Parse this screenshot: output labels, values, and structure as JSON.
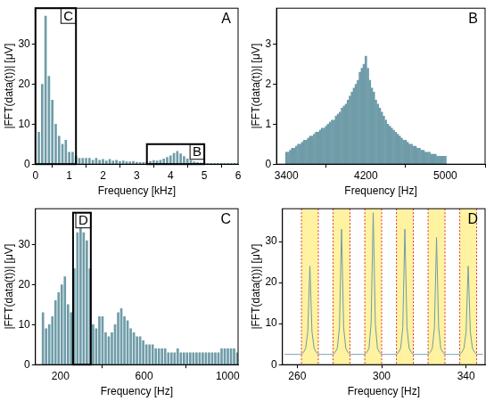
{
  "chart_data": [
    {
      "type": "bar",
      "panel_label": "A",
      "x_label": "Frequency [kHz]",
      "y_label": "|FFT(data(t))| [μV]",
      "color": "#6f9ca8",
      "grid": false,
      "xlim": [
        0,
        6
      ],
      "xticks": [
        0,
        1,
        2,
        3,
        4,
        5,
        6
      ],
      "ylim": [
        0,
        39
      ],
      "yticks": [
        0,
        10,
        20,
        30
      ],
      "x": [
        0,
        0.1,
        0.2,
        0.3,
        0.4,
        0.5,
        0.6,
        0.7,
        0.8,
        0.9,
        1,
        1.1,
        1.2,
        1.3,
        1.4,
        1.5,
        1.6,
        1.7,
        1.8,
        1.9,
        2,
        2.1,
        2.2,
        2.3,
        2.4,
        2.5,
        2.6,
        2.7,
        2.8,
        2.9,
        3,
        3.1,
        3.2,
        3.3,
        3.4,
        3.5,
        3.6,
        3.7,
        3.8,
        3.9,
        4,
        4.1,
        4.2,
        4.3,
        4.4,
        4.5,
        4.6,
        4.7,
        4.8,
        4.9,
        5,
        5.1,
        5.2,
        5.3,
        5.4,
        5.5,
        5.6,
        5.7,
        5.8,
        5.9,
        6
      ],
      "values": [
        0,
        8,
        20,
        37,
        22,
        16,
        10,
        7,
        5,
        6,
        3,
        3,
        2,
        1.5,
        1.5,
        1.5,
        1.5,
        1,
        1.5,
        1,
        1.2,
        0.8,
        1.2,
        0.8,
        1,
        0.7,
        0.8,
        0.6,
        0.6,
        0.7,
        0.5,
        0.4,
        0.4,
        0.5,
        0.7,
        0.9,
        0.8,
        1,
        1.3,
        1.7,
        2.1,
        2.7,
        3.2,
        2.6,
        1.9,
        1.3,
        0.9,
        0.6,
        0.4,
        0.3,
        0.3,
        0.2,
        0.2,
        0.2,
        0.2,
        0.2,
        0.2,
        0.2,
        0.2,
        0.2,
        0.2
      ],
      "boxes": [
        {
          "label": "C",
          "x": [
            0,
            1.2
          ],
          "y": [
            0,
            39
          ]
        },
        {
          "label": "B",
          "x": [
            3.3,
            5.0
          ],
          "y": [
            0,
            5
          ]
        }
      ]
    },
    {
      "type": "bar",
      "panel_label": "B",
      "x_label": "Frequency [Hz]",
      "y_label": "|FFT(data(t))| [μV]",
      "color": "#6f9ca8",
      "grid": false,
      "xlim": [
        3300,
        5400
      ],
      "xticks": [
        3400,
        4200,
        5000
      ],
      "ylim": [
        0,
        3.9
      ],
      "yticks": [
        0,
        1,
        2,
        3
      ],
      "x": [
        3400,
        3420,
        3440,
        3460,
        3480,
        3500,
        3520,
        3540,
        3560,
        3580,
        3600,
        3620,
        3640,
        3660,
        3680,
        3700,
        3720,
        3740,
        3760,
        3780,
        3800,
        3820,
        3840,
        3860,
        3880,
        3900,
        3920,
        3940,
        3960,
        3980,
        4000,
        4020,
        4040,
        4060,
        4080,
        4100,
        4120,
        4140,
        4160,
        4180,
        4200,
        4220,
        4240,
        4260,
        4280,
        4300,
        4320,
        4340,
        4360,
        4380,
        4400,
        4420,
        4440,
        4460,
        4480,
        4500,
        4520,
        4540,
        4560,
        4580,
        4600,
        4620,
        4640,
        4660,
        4680,
        4700,
        4720,
        4740,
        4760,
        4780,
        4800,
        4820,
        4840,
        4860,
        4880,
        4900,
        4920,
        4940,
        4960,
        4980,
        5000
      ],
      "values": [
        0.3,
        0.3,
        0.35,
        0.4,
        0.4,
        0.45,
        0.5,
        0.5,
        0.55,
        0.6,
        0.6,
        0.65,
        0.7,
        0.7,
        0.75,
        0.8,
        0.8,
        0.85,
        0.9,
        0.9,
        0.95,
        1.0,
        1.05,
        1.1,
        1.1,
        1.2,
        1.25,
        1.3,
        1.4,
        1.45,
        1.5,
        1.6,
        1.7,
        1.8,
        1.9,
        2.0,
        2.1,
        2.3,
        2.4,
        2.5,
        2.7,
        2.4,
        2.1,
        1.9,
        1.8,
        1.6,
        1.5,
        1.4,
        1.3,
        1.2,
        1.1,
        1.0,
        0.95,
        0.9,
        0.85,
        0.8,
        0.75,
        0.7,
        0.65,
        0.6,
        0.6,
        0.55,
        0.5,
        0.5,
        0.45,
        0.45,
        0.4,
        0.4,
        0.35,
        0.35,
        0.3,
        0.3,
        0.3,
        0.25,
        0.25,
        0.25,
        0.2,
        0.2,
        0.2,
        0.2,
        0.2
      ]
    },
    {
      "type": "bar",
      "panel_label": "C",
      "x_label": "Frequency [Hz]",
      "y_label": "|FFT(data(t))| [μV]",
      "color": "#6f9ca8",
      "grid": false,
      "xlim": [
        80,
        1050
      ],
      "xticks": [
        200,
        600,
        1000
      ],
      "ylim": [
        0,
        39
      ],
      "yticks": [
        0,
        10,
        20,
        30
      ],
      "x": [
        116,
        131,
        146,
        161,
        176,
        191,
        206,
        221,
        236,
        251,
        266,
        281,
        296,
        311,
        326,
        341,
        356,
        371,
        386,
        401,
        416,
        431,
        446,
        461,
        476,
        491,
        506,
        521,
        536,
        551,
        566,
        581,
        596,
        611,
        626,
        641,
        656,
        671,
        686,
        701,
        716,
        731,
        746,
        761,
        776,
        791,
        806,
        821,
        836,
        851,
        866,
        881,
        896,
        911,
        926,
        941,
        956,
        971,
        986,
        1001,
        1016,
        1031,
        1046
      ],
      "values": [
        13,
        9,
        10,
        12,
        16,
        18,
        20,
        22,
        15,
        13,
        24,
        33,
        37,
        33,
        31,
        24,
        10,
        9,
        12,
        12,
        8,
        7,
        8,
        10,
        13,
        14,
        12,
        11,
        9,
        8,
        7,
        7,
        6,
        5,
        5,
        5,
        4,
        4,
        4,
        4,
        3,
        3,
        3,
        4,
        3,
        3,
        3,
        3,
        3,
        3,
        3,
        3,
        3,
        3,
        3,
        3,
        3,
        4,
        4,
        4,
        4,
        4,
        3
      ],
      "boxes": [
        {
          "label": "D",
          "x": [
            260,
            345
          ],
          "y": [
            0,
            38
          ]
        }
      ]
    },
    {
      "type": "line",
      "panel_label": "D",
      "x_label": "Frequency [Hz]",
      "y_label": "|FFT(data(t))| [μV]",
      "color": "#6f9ca8",
      "grid": false,
      "xlim": [
        253,
        349
      ],
      "xticks": [
        260,
        300,
        340
      ],
      "ylim": [
        0,
        38
      ],
      "yticks": [
        0,
        10,
        20,
        30
      ],
      "x": [
        254,
        255,
        256,
        257,
        258,
        259,
        260,
        261,
        262,
        263,
        264,
        265,
        266,
        267,
        268,
        269,
        270,
        271,
        272,
        273,
        274,
        275,
        276,
        277,
        278,
        279,
        280,
        281,
        282,
        283,
        284,
        285,
        286,
        287,
        288,
        289,
        290,
        291,
        292,
        293,
        294,
        295,
        296,
        297,
        298,
        299,
        300,
        301,
        302,
        303,
        304,
        305,
        306,
        307,
        308,
        309,
        310,
        311,
        312,
        313,
        314,
        315,
        316,
        317,
        318,
        319,
        320,
        321,
        322,
        323,
        324,
        325,
        326,
        327,
        328,
        329,
        330,
        331,
        332,
        333,
        334,
        335,
        336,
        337,
        338,
        339,
        340,
        341,
        342,
        343,
        344,
        345,
        346,
        347,
        348
      ],
      "values": [
        2.5,
        2.5,
        2.5,
        2.5,
        2.5,
        2.5,
        2.5,
        2.5,
        2.5,
        3,
        4,
        8,
        24,
        8,
        4,
        3,
        2.5,
        2.5,
        2.5,
        2.5,
        2.5,
        2.5,
        2.5,
        2.5,
        3,
        4,
        9,
        33,
        9,
        4,
        3,
        2.5,
        2.5,
        2.5,
        2.5,
        2.5,
        2.5,
        2.5,
        2.5,
        3,
        4,
        10,
        37,
        10,
        4,
        3,
        2.5,
        2.5,
        2.5,
        2.5,
        2.5,
        2.5,
        2.5,
        2.5,
        3,
        4,
        9,
        33,
        9,
        4,
        3,
        2.5,
        2.5,
        2.5,
        2.5,
        2.5,
        2.5,
        2.5,
        2.5,
        3,
        4,
        9,
        31,
        9,
        4,
        3,
        2.5,
        2.5,
        2.5,
        2.5,
        2.5,
        2.5,
        2.5,
        2.5,
        3,
        4,
        8,
        24,
        8,
        4,
        3,
        2.5,
        2.5,
        2.5,
        2.5
      ],
      "bands": [
        [
          262,
          270
        ],
        [
          277,
          285
        ],
        [
          292,
          300
        ],
        [
          307,
          315
        ],
        [
          322,
          330
        ],
        [
          337,
          345
        ]
      ]
    }
  ]
}
